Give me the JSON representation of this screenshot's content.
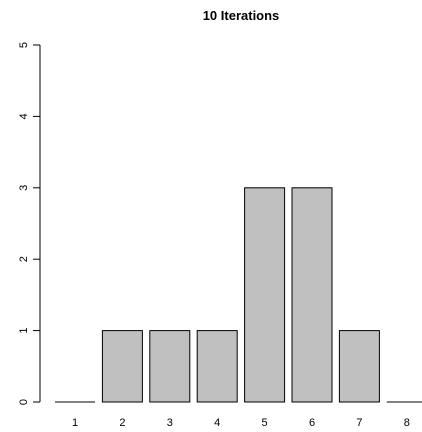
{
  "chart_data": {
    "type": "bar",
    "title": "10 Iterations",
    "xlabel": "",
    "ylabel": "",
    "categories": [
      "1",
      "2",
      "3",
      "4",
      "5",
      "6",
      "7",
      "8"
    ],
    "values": [
      0,
      1,
      1,
      1,
      3,
      3,
      1,
      0
    ],
    "ylim": [
      0,
      5
    ],
    "yticks": [
      0,
      1,
      2,
      3,
      4,
      5
    ],
    "grid": false,
    "bar_color": "#c0c0c0",
    "bar_border_color": "#000000"
  }
}
